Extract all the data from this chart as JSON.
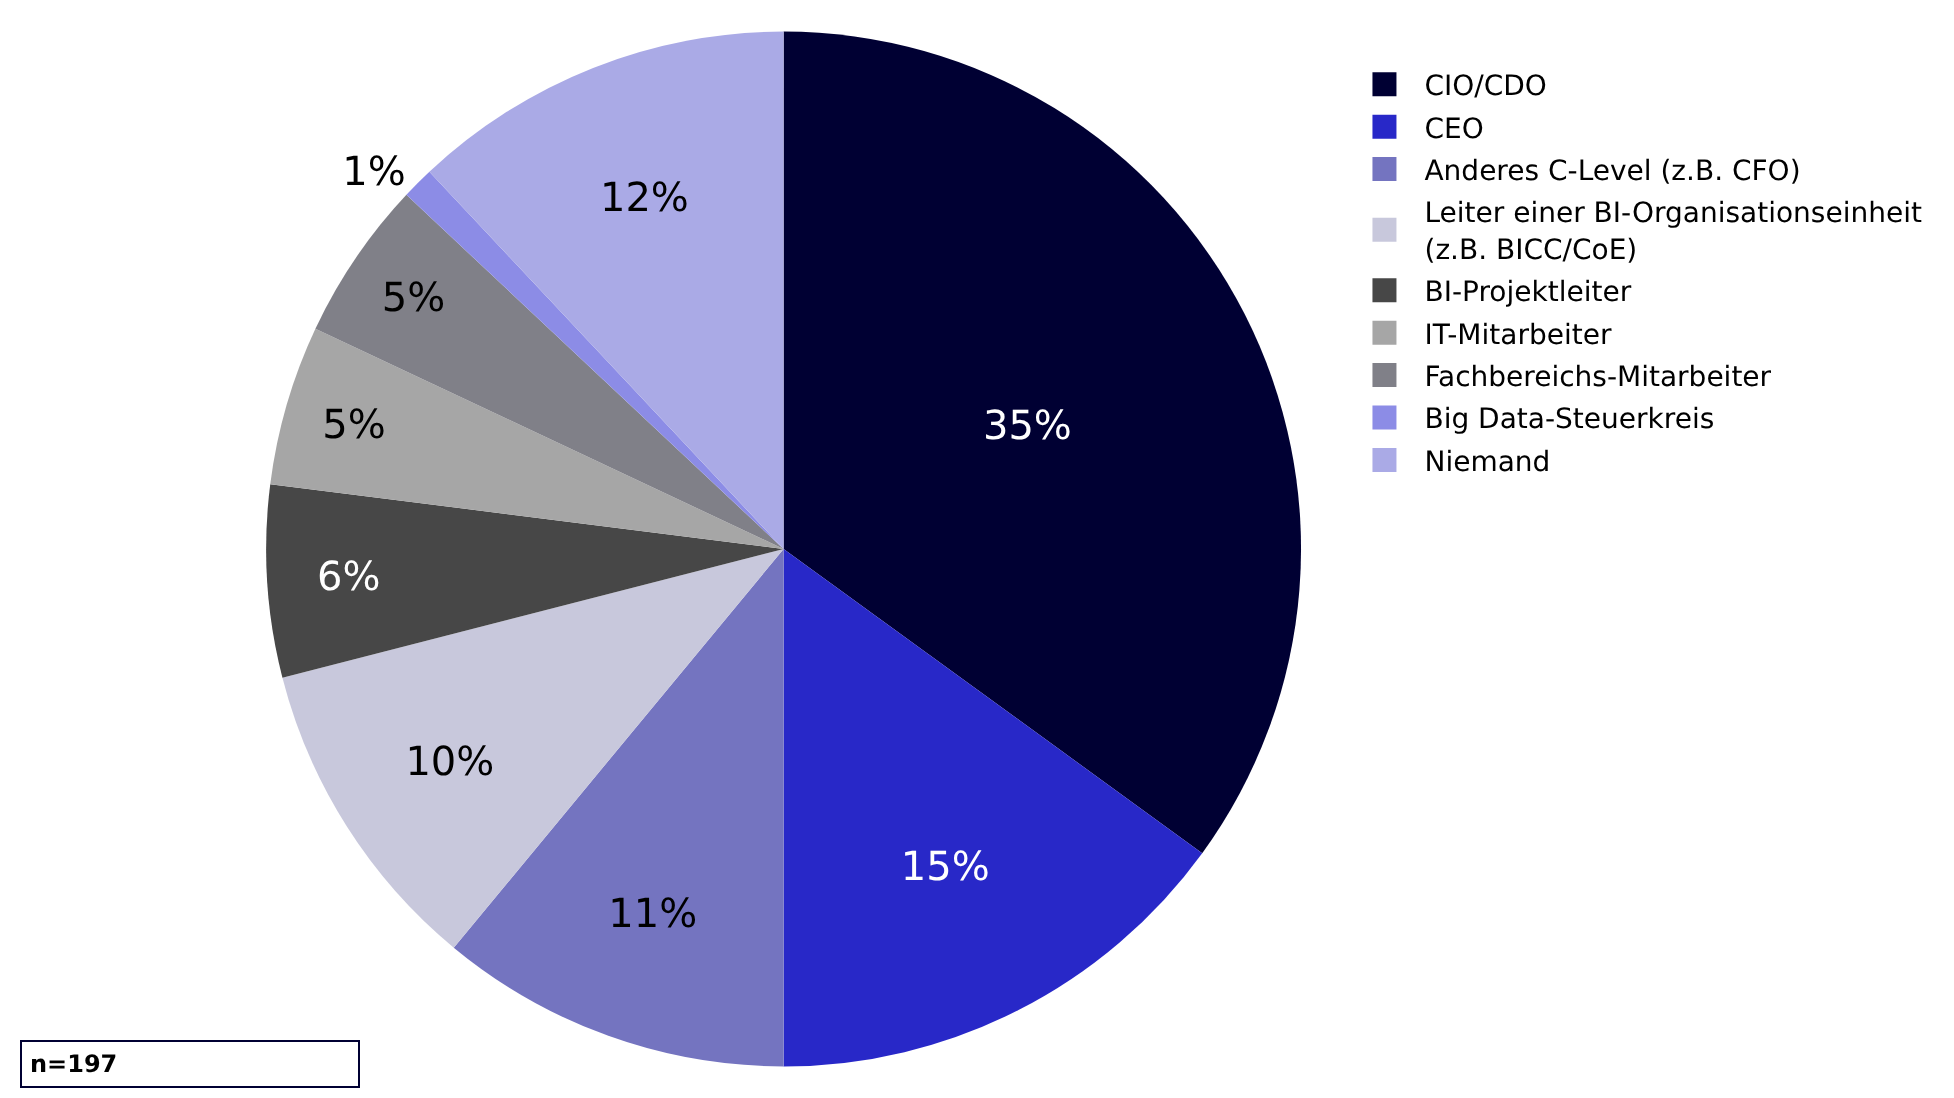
{
  "chart_data": {
    "type": "pie",
    "categories": [
      "CIO/CDO",
      "CEO",
      "Anderes C-Level (z.B. CFO)",
      "Leiter einer BI-Organisationseinheit\n(z.B. BICC/CoE)",
      "BI-Projektleiter",
      "IT-Mitarbeiter",
      "Fachbereichs-Mitarbeiter",
      "Big Data-Steuerkreis",
      "Niemand"
    ],
    "values": [
      35,
      15,
      11,
      10,
      6,
      5,
      5,
      1,
      12
    ],
    "value_labels": [
      "35%",
      "15%",
      "11%",
      "10%",
      "6%",
      "5%",
      "5%",
      "1%",
      "12%"
    ],
    "colors": [
      "#000033",
      "#2828c8",
      "#7474c0",
      "#c8c8dc",
      "#474747",
      "#a6a6a6",
      "#808088",
      "#8c8ce6",
      "#aaaae6"
    ],
    "legend": "right",
    "annotations": [
      "n=197"
    ]
  }
}
